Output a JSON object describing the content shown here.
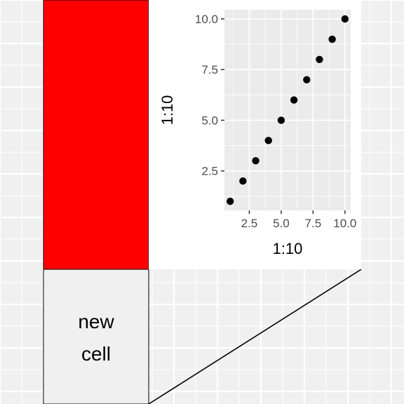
{
  "canvas": {
    "background_color": "#f0f0f0",
    "grid": "on"
  },
  "cells": [
    {
      "name": "red-cell",
      "fill": "#ff0000",
      "label": ""
    },
    {
      "name": "text-cell",
      "fill": "#f0f0f0",
      "label_lines": [
        "new",
        "cell"
      ]
    }
  ],
  "chart_data": {
    "type": "scatter",
    "title": "",
    "xlabel": "1:10",
    "ylabel": "1:10",
    "x": [
      1,
      2,
      3,
      4,
      5,
      6,
      7,
      8,
      9,
      10
    ],
    "y": [
      1,
      2,
      3,
      4,
      5,
      6,
      7,
      8,
      9,
      10
    ],
    "xlim": [
      0.55,
      10.45
    ],
    "ylim": [
      0.55,
      10.45
    ],
    "x_ticks": [
      2.5,
      5.0,
      7.5,
      10.0
    ],
    "x_tick_labels": [
      "2.5",
      "5.0",
      "7.5",
      "10.0"
    ],
    "y_ticks": [
      2.5,
      5.0,
      7.5,
      10.0
    ],
    "y_tick_labels": [
      "2.5",
      "5.0",
      "7.5",
      "10.0"
    ],
    "point_color": "#000000",
    "panel_background": "#ebebeb",
    "grid": "on"
  }
}
